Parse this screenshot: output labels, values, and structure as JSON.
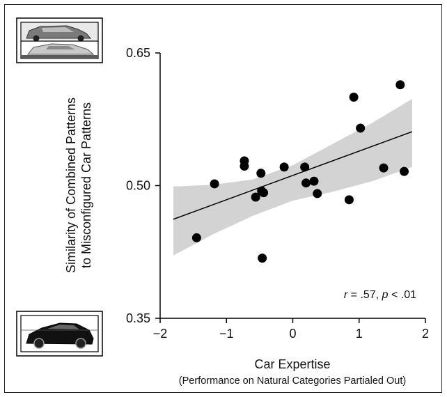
{
  "chart_data": {
    "type": "scatter",
    "xlabel": "Car Expertise",
    "xlabel_sub": "(Performance on Natural Categories Partialed Out)",
    "ylabel_line1": "Similarity of Combined Patterns",
    "ylabel_line2": "to Misconfigured Car Patterns",
    "xlim": [
      -2,
      2
    ],
    "ylim": [
      0.35,
      0.65
    ],
    "x_ticks": [
      -2,
      -1,
      0,
      1,
      2
    ],
    "x_tick_labels": [
      "−2",
      "−1",
      "0",
      "1",
      "2"
    ],
    "y_ticks": [
      0.35,
      0.5,
      0.65
    ],
    "y_tick_labels": [
      "0.35",
      "0.50",
      "0.65"
    ],
    "annotation": {
      "r_symbol": "r",
      "r_value": " = .57, ",
      "p_symbol": "p",
      "p_value": " < .01"
    },
    "points": [
      {
        "x": -1.45,
        "y": 0.441
      },
      {
        "x": -1.18,
        "y": 0.502
      },
      {
        "x": -0.73,
        "y": 0.528
      },
      {
        "x": -0.73,
        "y": 0.522
      },
      {
        "x": -0.56,
        "y": 0.487
      },
      {
        "x": -0.48,
        "y": 0.514
      },
      {
        "x": -0.47,
        "y": 0.494
      },
      {
        "x": -0.44,
        "y": 0.492
      },
      {
        "x": -0.46,
        "y": 0.418
      },
      {
        "x": -0.13,
        "y": 0.521
      },
      {
        "x": 0.18,
        "y": 0.521
      },
      {
        "x": 0.2,
        "y": 0.503
      },
      {
        "x": 0.32,
        "y": 0.505
      },
      {
        "x": 0.37,
        "y": 0.491
      },
      {
        "x": 0.85,
        "y": 0.484
      },
      {
        "x": 0.92,
        "y": 0.6
      },
      {
        "x": 1.02,
        "y": 0.565
      },
      {
        "x": 1.37,
        "y": 0.52
      },
      {
        "x": 1.62,
        "y": 0.614
      },
      {
        "x": 1.68,
        "y": 0.516
      }
    ],
    "fit_line": {
      "x": [
        -1.8,
        1.8
      ],
      "y": [
        0.462,
        0.561
      ]
    },
    "confidence_band": {
      "x": [
        -1.8,
        -1.2,
        -0.6,
        0.0,
        0.6,
        1.2,
        1.8
      ],
      "upper": [
        0.499,
        0.501,
        0.507,
        0.523,
        0.547,
        0.571,
        0.598
      ],
      "lower": [
        0.421,
        0.445,
        0.466,
        0.483,
        0.493,
        0.505,
        0.521
      ]
    },
    "colors": {
      "points": "#000000",
      "fit_line": "#000000",
      "band": "#d3d3d3",
      "axes": "#000000"
    },
    "icons": [
      "misconfigured-car-thumbnail",
      "normal-car-thumbnail"
    ]
  }
}
